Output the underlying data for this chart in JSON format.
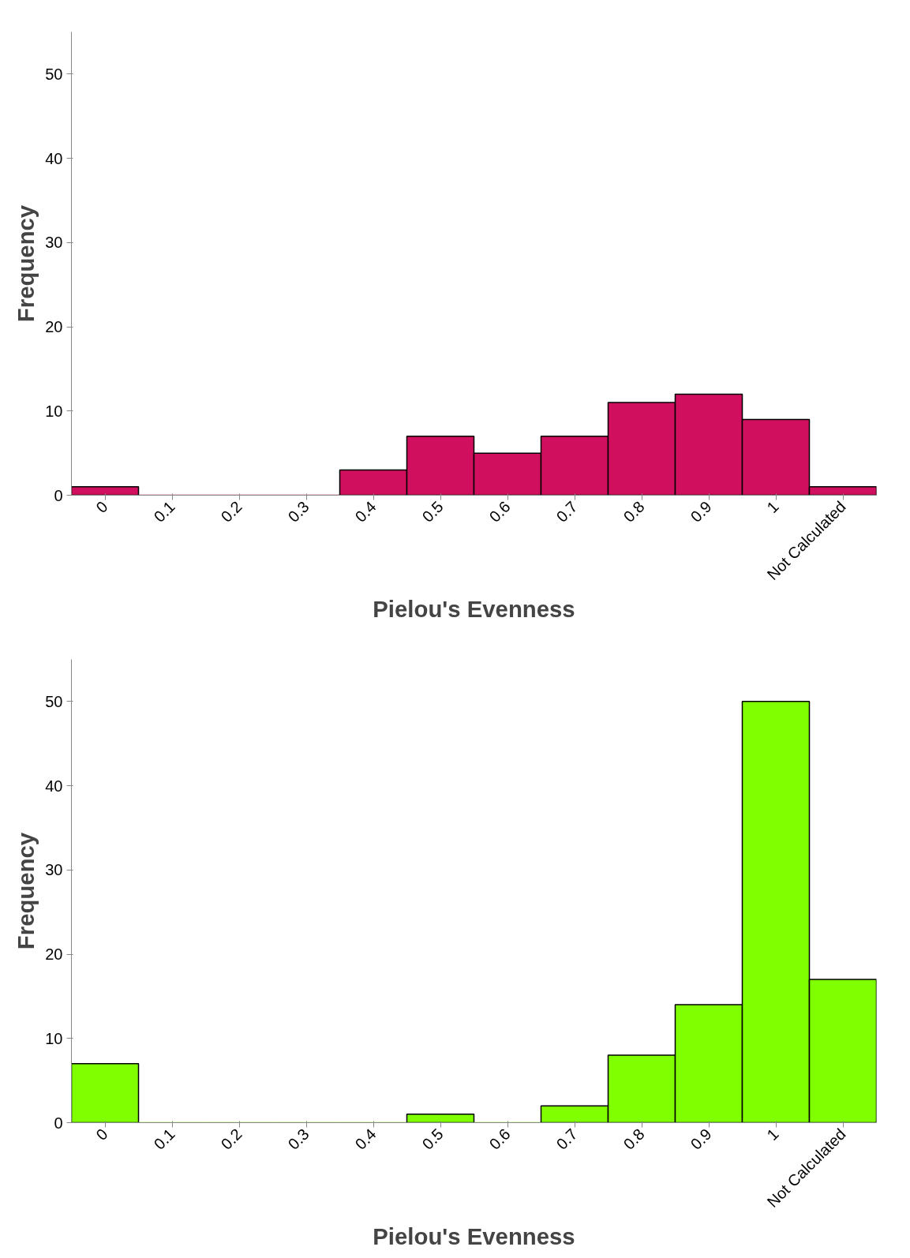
{
  "chart_data": [
    {
      "type": "bar",
      "xlabel": "Pielou's Evenness",
      "ylabel": "Frequency",
      "categories": [
        "0",
        "0.1",
        "0.2",
        "0.3",
        "0.4",
        "0.5",
        "0.6",
        "0.7",
        "0.8",
        "0.9",
        "1",
        "Not Calculated"
      ],
      "series": [
        {
          "color": "#d0105e",
          "values": [
            1,
            0,
            0,
            0,
            3,
            7,
            5,
            7,
            11,
            12,
            9,
            1
          ]
        }
      ],
      "ylim": [
        0,
        55
      ],
      "yticks": [
        0,
        10,
        20,
        30,
        40,
        50
      ],
      "grid": false
    },
    {
      "type": "bar",
      "xlabel": "Pielou's Evenness",
      "ylabel": "Frequency",
      "categories": [
        "0",
        "0.1",
        "0.2",
        "0.3",
        "0.4",
        "0.5",
        "0.6",
        "0.7",
        "0.8",
        "0.9",
        "1",
        "Not Calculated"
      ],
      "series": [
        {
          "color": "#80ff00",
          "values": [
            7,
            0,
            0,
            0,
            0,
            1,
            0,
            2,
            8,
            14,
            50,
            17
          ]
        }
      ],
      "ylim": [
        0,
        55
      ],
      "yticks": [
        0,
        10,
        20,
        30,
        40,
        50
      ],
      "grid": false
    }
  ]
}
